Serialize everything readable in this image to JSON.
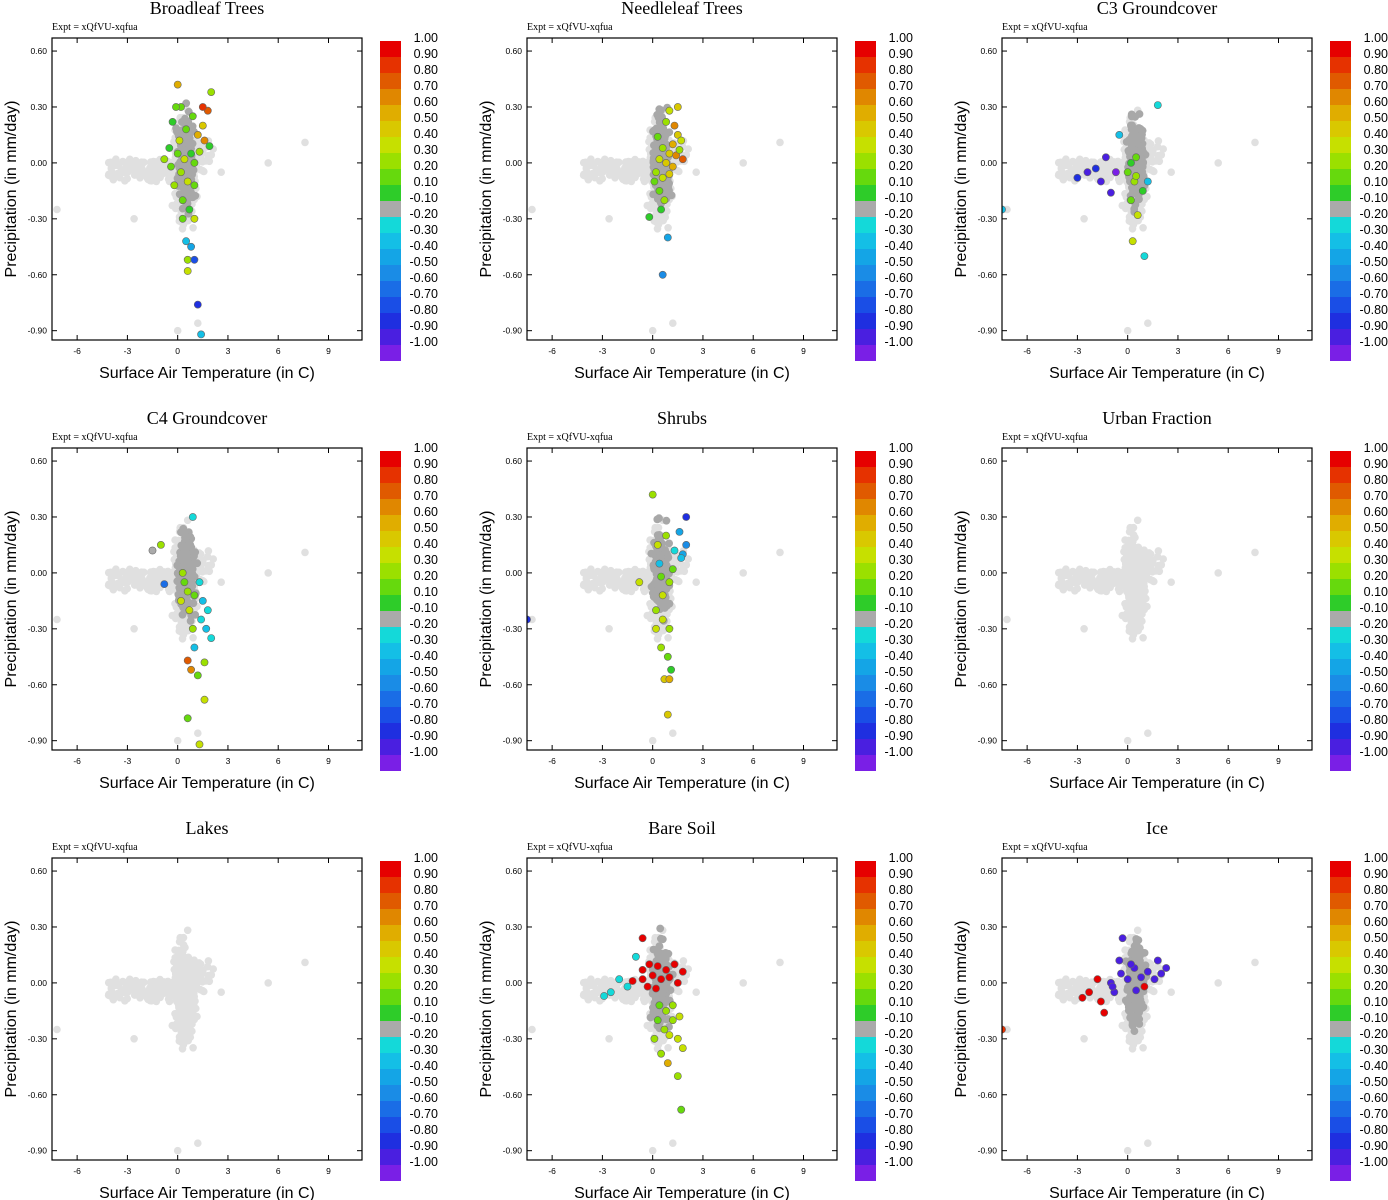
{
  "figure": {
    "expt_label": "Expt = xQfVU-xqfua",
    "colorbar_labels": [
      "1.00",
      "0.90",
      "0.80",
      "0.70",
      "0.60",
      "0.50",
      "0.40",
      "0.30",
      "0.20",
      "0.10",
      "-0.10",
      "-0.20",
      "-0.30",
      "-0.40",
      "-0.50",
      "-0.60",
      "-0.70",
      "-0.80",
      "-0.90",
      "-1.00"
    ],
    "colorbar_colors": [
      "#e60000",
      "#e63200",
      "#e05a00",
      "#e08700",
      "#e0ad00",
      "#d9c800",
      "#c6e000",
      "#9be000",
      "#66d90d",
      "#2ecc29",
      "#aaaaaa",
      "#14d9d9",
      "#14bfe6",
      "#14a5e6",
      "#1a8ce6",
      "#1a6de6",
      "#1a4ee6",
      "#1f2fe0",
      "#4a1fe0",
      "#7a1fe6"
    ],
    "grey_background": "#e0e0e0",
    "grey_active": "#a8a8a8"
  },
  "chart_data": [
    {
      "type": "scatter",
      "title": "Broadleaf Trees",
      "xlabel": "Surface Air Temperature (in C)",
      "ylabel": "Precipitation (in mm/day)",
      "xlim": [
        -7.5,
        11
      ],
      "ylim": [
        -0.95,
        0.67
      ],
      "xticks": [
        "-6",
        "-3",
        "0",
        "3",
        "6",
        "9"
      ],
      "yticks": [
        "0.60",
        "0.30",
        "0.00",
        "-0.30",
        "-0.60",
        "-0.90"
      ],
      "points": [
        [
          0.0,
          0.42,
          0.6
        ],
        [
          0.2,
          0.3,
          0.2
        ],
        [
          1.8,
          0.28,
          0.8
        ],
        [
          1.5,
          0.3,
          0.9
        ],
        [
          2.0,
          0.38,
          0.3
        ],
        [
          -0.3,
          0.22,
          0.1
        ],
        [
          0.5,
          0.18,
          0.2
        ],
        [
          1.2,
          0.15,
          0.6
        ],
        [
          1.5,
          0.2,
          0.5
        ],
        [
          1.6,
          0.12,
          0.7
        ],
        [
          -0.5,
          0.08,
          0.1
        ],
        [
          0.0,
          0.05,
          0.2
        ],
        [
          0.4,
          0.02,
          0.4
        ],
        [
          0.8,
          0.05,
          0.1
        ],
        [
          1.0,
          0.0,
          0.2
        ],
        [
          1.3,
          0.06,
          0.3
        ],
        [
          -0.8,
          0.02,
          0.3
        ],
        [
          -0.4,
          -0.02,
          0.2
        ],
        [
          0.2,
          -0.05,
          0.3
        ],
        [
          0.6,
          -0.1,
          0.4
        ],
        [
          1.0,
          -0.12,
          0.2
        ],
        [
          -0.2,
          -0.12,
          0.3
        ],
        [
          0.3,
          -0.2,
          0.2
        ],
        [
          0.7,
          -0.25,
          0.1
        ],
        [
          0.3,
          -0.3,
          0.2
        ],
        [
          1.0,
          -0.3,
          0.4
        ],
        [
          0.8,
          -0.45,
          -0.4
        ],
        [
          0.6,
          -0.52,
          0.3
        ],
        [
          1.0,
          -0.52,
          -0.7
        ],
        [
          0.6,
          -0.58,
          0.4
        ],
        [
          1.2,
          -0.76,
          -0.8
        ],
        [
          1.4,
          -0.92,
          -0.3
        ],
        [
          0.9,
          0.25,
          0.2
        ],
        [
          0.1,
          0.12,
          0.4
        ],
        [
          -0.1,
          0.3,
          0.2
        ],
        [
          1.9,
          0.09,
          0.1
        ],
        [
          0.5,
          -0.42,
          -0.3
        ]
      ]
    },
    {
      "type": "scatter",
      "title": "Needleleaf Trees",
      "xlabel": "Surface Air Temperature (in C)",
      "ylabel": "Precipitation (in mm/day)",
      "xlim": [
        -7.5,
        11
      ],
      "ylim": [
        -0.95,
        0.67
      ],
      "xticks": [
        "-6",
        "-3",
        "0",
        "3",
        "6",
        "9"
      ],
      "yticks": [
        "0.60",
        "0.30",
        "0.00",
        "-0.30",
        "-0.60",
        "-0.90"
      ],
      "points": [
        [
          1.5,
          0.3,
          0.5
        ],
        [
          1.0,
          0.28,
          0.4
        ],
        [
          0.8,
          0.22,
          0.3
        ],
        [
          1.5,
          0.15,
          0.5
        ],
        [
          1.2,
          0.1,
          0.6
        ],
        [
          1.7,
          0.12,
          0.4
        ],
        [
          0.6,
          0.08,
          0.3
        ],
        [
          1.0,
          0.05,
          0.5
        ],
        [
          1.4,
          0.04,
          0.7
        ],
        [
          1.8,
          0.02,
          0.8
        ],
        [
          0.4,
          0.02,
          0.4
        ],
        [
          0.8,
          0.0,
          0.5
        ],
        [
          1.2,
          -0.02,
          0.6
        ],
        [
          0.2,
          -0.05,
          0.3
        ],
        [
          0.6,
          -0.08,
          0.4
        ],
        [
          1.0,
          -0.06,
          0.5
        ],
        [
          0.4,
          -0.15,
          0.2
        ],
        [
          0.7,
          -0.2,
          0.3
        ],
        [
          0.5,
          -0.25,
          0.1
        ],
        [
          -0.2,
          -0.29,
          0.1
        ],
        [
          0.9,
          -0.4,
          -0.4
        ],
        [
          0.6,
          -0.6,
          -0.5
        ],
        [
          1.3,
          0.2,
          0.7
        ],
        [
          0.3,
          0.14,
          0.2
        ],
        [
          1.6,
          0.07,
          0.3
        ],
        [
          0.1,
          -0.1,
          0.2
        ]
      ]
    },
    {
      "type": "scatter",
      "title": "C3 Groundcover",
      "xlabel": "Surface Air Temperature (in C)",
      "ylabel": "Precipitation (in mm/day)",
      "xlim": [
        -7.5,
        11
      ],
      "ylim": [
        -0.95,
        0.67
      ],
      "xticks": [
        "-6",
        "-3",
        "0",
        "3",
        "6",
        "9"
      ],
      "yticks": [
        "0.60",
        "0.30",
        "0.00",
        "-0.30",
        "-0.60",
        "-0.90"
      ],
      "points": [
        [
          1.8,
          0.31,
          -0.2
        ],
        [
          -1.3,
          0.03,
          -0.9
        ],
        [
          -2.4,
          -0.05,
          -0.9
        ],
        [
          -3.0,
          -0.08,
          -0.8
        ],
        [
          -1.6,
          -0.1,
          -0.9
        ],
        [
          -1.0,
          -0.16,
          -0.9
        ],
        [
          -1.9,
          -0.03,
          -0.8
        ],
        [
          -0.7,
          -0.05,
          -1.0
        ],
        [
          -7.5,
          -0.25,
          -0.3
        ],
        [
          1.2,
          -0.1,
          -0.3
        ],
        [
          0.2,
          0.0,
          0.1
        ],
        [
          0.5,
          0.03,
          0.2
        ],
        [
          0.0,
          -0.05,
          0.2
        ],
        [
          0.4,
          -0.1,
          0.3
        ],
        [
          0.2,
          -0.2,
          0.2
        ],
        [
          0.6,
          -0.28,
          0.4
        ],
        [
          0.3,
          -0.42,
          0.4
        ],
        [
          1.0,
          -0.5,
          -0.2
        ],
        [
          -0.5,
          0.15,
          -0.3
        ],
        [
          0.9,
          -0.15,
          0.1
        ],
        [
          0.5,
          -0.07,
          0.3
        ]
      ]
    },
    {
      "type": "scatter",
      "title": "C4 Groundcover",
      "xlabel": "Surface Air Temperature (in C)",
      "ylabel": "Precipitation (in mm/day)",
      "xlim": [
        -7.5,
        11
      ],
      "ylim": [
        -0.95,
        0.67
      ],
      "xticks": [
        "-6",
        "-3",
        "0",
        "3",
        "6",
        "9"
      ],
      "yticks": [
        "0.60",
        "0.30",
        "0.00",
        "-0.30",
        "-0.60",
        "-0.90"
      ],
      "points": [
        [
          -1.0,
          0.15,
          0.3
        ],
        [
          -1.5,
          0.12,
          -0.1
        ],
        [
          -0.8,
          -0.06,
          -0.6
        ],
        [
          0.4,
          -0.05,
          0.2
        ],
        [
          0.6,
          -0.1,
          0.3
        ],
        [
          1.0,
          -0.12,
          0.2
        ],
        [
          1.5,
          -0.15,
          -0.3
        ],
        [
          1.8,
          -0.2,
          -0.2
        ],
        [
          1.4,
          -0.25,
          -0.2
        ],
        [
          1.7,
          -0.3,
          -0.3
        ],
        [
          2.0,
          -0.35,
          -0.2
        ],
        [
          0.7,
          -0.2,
          0.4
        ],
        [
          0.9,
          -0.3,
          0.3
        ],
        [
          1.0,
          -0.4,
          -0.3
        ],
        [
          0.6,
          -0.47,
          0.8
        ],
        [
          0.8,
          -0.52,
          0.7
        ],
        [
          1.2,
          -0.55,
          0.2
        ],
        [
          1.6,
          -0.48,
          0.3
        ],
        [
          1.6,
          -0.68,
          0.4
        ],
        [
          0.6,
          -0.78,
          0.2
        ],
        [
          1.3,
          -0.92,
          0.4
        ],
        [
          0.3,
          0.0,
          0.3
        ],
        [
          1.3,
          -0.05,
          -0.2
        ],
        [
          0.9,
          0.3,
          -0.2
        ],
        [
          0.2,
          -0.15,
          0.4
        ]
      ]
    },
    {
      "type": "scatter",
      "title": "Shrubs",
      "xlabel": "Surface Air Temperature (in C)",
      "ylabel": "Precipitation (in mm/day)",
      "xlim": [
        -7.5,
        11
      ],
      "ylim": [
        -0.95,
        0.67
      ],
      "xticks": [
        "-6",
        "-3",
        "0",
        "3",
        "6",
        "9"
      ],
      "yticks": [
        "0.60",
        "0.30",
        "0.00",
        "-0.30",
        "-0.60",
        "-0.90"
      ],
      "points": [
        [
          2.0,
          0.3,
          -0.8
        ],
        [
          1.6,
          0.22,
          -0.4
        ],
        [
          1.8,
          0.1,
          -0.4
        ],
        [
          2.0,
          0.15,
          -0.5
        ],
        [
          1.7,
          0.08,
          -0.3
        ],
        [
          1.3,
          0.12,
          -0.2
        ],
        [
          0.8,
          0.2,
          0.3
        ],
        [
          0.3,
          0.15,
          0.4
        ],
        [
          0.0,
          0.42,
          0.3
        ],
        [
          -0.8,
          -0.05,
          0.4
        ],
        [
          0.5,
          -0.02,
          0.2
        ],
        [
          1.0,
          -0.05,
          0.3
        ],
        [
          0.6,
          -0.12,
          0.4
        ],
        [
          0.2,
          -0.2,
          0.3
        ],
        [
          0.6,
          -0.25,
          0.4
        ],
        [
          1.0,
          -0.3,
          0.3
        ],
        [
          0.5,
          -0.4,
          0.3
        ],
        [
          0.9,
          -0.45,
          0.2
        ],
        [
          1.1,
          -0.52,
          0.1
        ],
        [
          0.7,
          -0.57,
          0.5
        ],
        [
          1.0,
          -0.57,
          0.6
        ],
        [
          0.9,
          -0.76,
          0.5
        ],
        [
          -7.5,
          -0.25,
          -0.8
        ],
        [
          0.2,
          -0.3,
          0.4
        ],
        [
          1.2,
          0.02,
          0.2
        ],
        [
          0.4,
          0.05,
          -0.3
        ]
      ]
    },
    {
      "type": "scatter",
      "title": "Urban Fraction",
      "xlabel": "Surface Air Temperature (in C)",
      "ylabel": "Precipitation (in mm/day)",
      "xlim": [
        -7.5,
        11
      ],
      "ylim": [
        -0.95,
        0.67
      ],
      "xticks": [
        "-6",
        "-3",
        "0",
        "3",
        "6",
        "9"
      ],
      "yticks": [
        "0.60",
        "0.30",
        "0.00",
        "-0.30",
        "-0.60",
        "-0.90"
      ],
      "points": []
    },
    {
      "type": "scatter",
      "title": "Lakes",
      "xlabel": "Surface Air Temperature (in C)",
      "ylabel": "Precipitation (in mm/day)",
      "xlim": [
        -7.5,
        11
      ],
      "ylim": [
        -0.95,
        0.67
      ],
      "xticks": [
        "-6",
        "-3",
        "0",
        "3",
        "6",
        "9"
      ],
      "yticks": [
        "0.60",
        "0.30",
        "0.00",
        "-0.30",
        "-0.60",
        "-0.90"
      ],
      "points": []
    },
    {
      "type": "scatter",
      "title": "Bare Soil",
      "xlabel": "Surface Air Temperature (in C)",
      "ylabel": "Precipitation (in mm/day)",
      "xlim": [
        -7.5,
        11
      ],
      "ylim": [
        -0.95,
        0.67
      ],
      "xticks": [
        "-6",
        "-3",
        "0",
        "3",
        "6",
        "9"
      ],
      "yticks": [
        "0.60",
        "0.30",
        "0.00",
        "-0.30",
        "-0.60",
        "-0.90"
      ],
      "points": [
        [
          -0.6,
          0.24,
          1.0
        ],
        [
          -1.0,
          0.14,
          -0.2
        ],
        [
          -0.6,
          0.07,
          1.0
        ],
        [
          -0.2,
          0.1,
          1.0
        ],
        [
          0.3,
          0.09,
          1.0
        ],
        [
          0.8,
          0.07,
          1.0
        ],
        [
          1.3,
          0.1,
          1.0
        ],
        [
          1.8,
          0.06,
          1.0
        ],
        [
          -1.2,
          0.01,
          1.0
        ],
        [
          -0.6,
          0.02,
          1.0
        ],
        [
          0.0,
          0.04,
          1.0
        ],
        [
          0.5,
          0.02,
          1.0
        ],
        [
          1.0,
          0.03,
          1.0
        ],
        [
          1.5,
          0.0,
          1.0
        ],
        [
          -1.5,
          -0.02,
          -0.2
        ],
        [
          -2.0,
          0.02,
          -0.2
        ],
        [
          -2.5,
          -0.05,
          -0.2
        ],
        [
          -2.9,
          -0.07,
          -0.2
        ],
        [
          -0.3,
          -0.02,
          1.0
        ],
        [
          0.2,
          -0.03,
          1.0
        ],
        [
          0.4,
          -0.12,
          0.2
        ],
        [
          0.8,
          -0.15,
          0.3
        ],
        [
          1.2,
          -0.12,
          0.3
        ],
        [
          0.3,
          -0.2,
          0.2
        ],
        [
          0.7,
          -0.25,
          0.3
        ],
        [
          1.0,
          -0.28,
          0.4
        ],
        [
          1.5,
          -0.3,
          0.4
        ],
        [
          1.8,
          -0.35,
          0.4
        ],
        [
          0.5,
          -0.38,
          0.3
        ],
        [
          0.9,
          -0.43,
          0.6
        ],
        [
          1.5,
          -0.5,
          0.3
        ],
        [
          1.7,
          -0.68,
          0.2
        ],
        [
          1.2,
          -0.2,
          0.3
        ],
        [
          1.6,
          -0.18,
          0.4
        ],
        [
          0.1,
          -0.3,
          0.3
        ]
      ]
    },
    {
      "type": "scatter",
      "title": "Ice",
      "xlabel": "Surface Air Temperature (in C)",
      "ylabel": "Precipitation (in mm/day)",
      "xlim": [
        -7.5,
        11
      ],
      "ylim": [
        -0.95,
        0.67
      ],
      "xticks": [
        "-6",
        "-3",
        "0",
        "3",
        "6",
        "9"
      ],
      "yticks": [
        "0.60",
        "0.30",
        "0.00",
        "-0.30",
        "-0.60",
        "-0.90"
      ],
      "points": [
        [
          -7.5,
          -0.25,
          0.9
        ],
        [
          -1.4,
          -0.16,
          1.0
        ],
        [
          -1.6,
          -0.1,
          1.0
        ],
        [
          -2.3,
          -0.05,
          1.0
        ],
        [
          -2.7,
          -0.08,
          1.0
        ],
        [
          -1.8,
          0.02,
          1.0
        ],
        [
          -1.0,
          0.0,
          -0.9
        ],
        [
          -0.8,
          -0.05,
          -0.9
        ],
        [
          -0.4,
          0.05,
          -0.9
        ],
        [
          0.0,
          0.02,
          -0.9
        ],
        [
          0.4,
          0.08,
          -0.9
        ],
        [
          0.8,
          0.03,
          -0.9
        ],
        [
          1.2,
          0.06,
          -0.9
        ],
        [
          1.6,
          0.02,
          -0.9
        ],
        [
          2.0,
          0.05,
          -0.9
        ],
        [
          2.3,
          0.08,
          -0.9
        ],
        [
          -0.5,
          0.12,
          -0.9
        ],
        [
          0.2,
          0.1,
          -0.9
        ],
        [
          -0.3,
          0.24,
          -0.9
        ],
        [
          0.5,
          -0.04,
          -0.9
        ],
        [
          1.0,
          -0.02,
          1.0
        ],
        [
          -0.9,
          -0.02,
          -0.9
        ],
        [
          1.8,
          0.12,
          -0.9
        ]
      ]
    }
  ]
}
